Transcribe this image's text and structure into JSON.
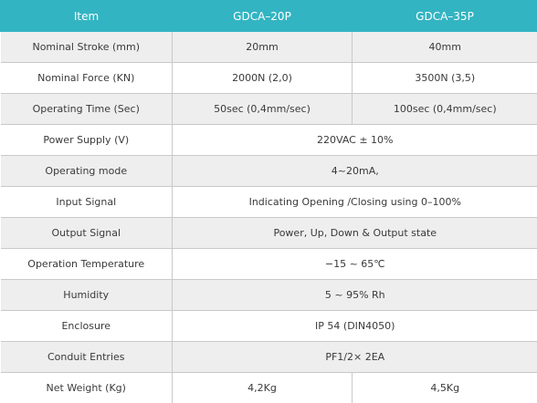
{
  "table": {
    "header": [
      "Item",
      "GDCA–20P",
      "GDCA–35P"
    ],
    "rows": [
      [
        "Nominal Stroke (mm)",
        "20mm",
        "40mm"
      ],
      [
        "Nominal Force (KN)",
        "2000N (2,0)",
        "3500N (3,5)"
      ],
      [
        "Operating Time (Sec)",
        "50sec (0,4mm/sec)",
        "100sec (0,4mm/sec)"
      ],
      [
        "Power Supply (V)",
        "220VAC ± 10%"
      ],
      [
        "Operating mode",
        "4~20mA,"
      ],
      [
        "Input Signal",
        "Indicating Opening /Closing using 0–100%"
      ],
      [
        "Output Signal",
        "Power, Up, Down & Output  state"
      ],
      [
        "Operation Temperature",
        "−15 ~ 65℃"
      ],
      [
        "Humidity",
        "5 ~ 95% Rh"
      ],
      [
        "Enclosure",
        "IP 54 (DIN4050)"
      ],
      [
        "Conduit Entries",
        "PF1/2× 2EA"
      ],
      [
        "Net Weight (Kg)",
        "4,2Kg",
        "4,5Kg"
      ]
    ]
  }
}
